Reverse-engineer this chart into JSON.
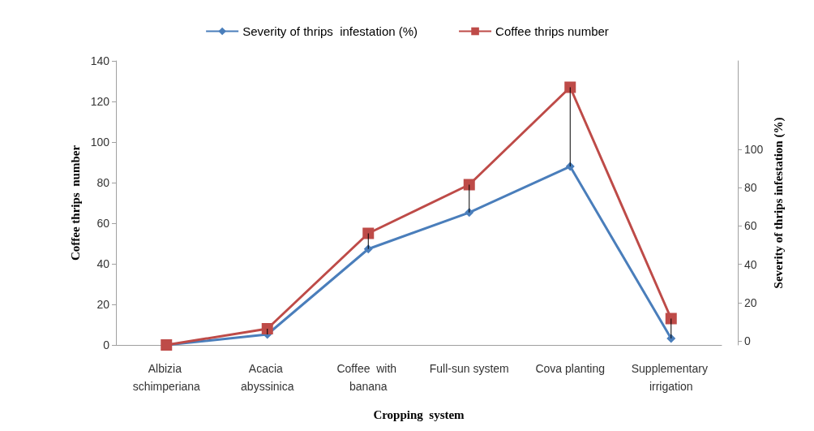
{
  "chart_data": {
    "type": "line",
    "xlabel": "Cropping  system",
    "ylabel": "Coffee thrips  number",
    "y2label": "Severity of thrips infestation (%)",
    "categories": [
      "Albizia schimperiana",
      "Acacia abyssinica",
      "Coffee  with banana",
      "Full-sun system",
      "Cova planting",
      "Supplementary irrigation"
    ],
    "series": [
      {
        "name": "Severity of thrips  infestation (%)",
        "color": "#4a7ebb",
        "marker": "diamond",
        "axis": "y2",
        "values": [
          -2,
          3.5,
          48,
          67,
          91,
          1.4
        ]
      },
      {
        "name": "Coffee thrips number",
        "color": "#be4b48",
        "marker": "square",
        "values": [
          0,
          8,
          55,
          79,
          127,
          13
        ]
      }
    ],
    "ylim": [
      0,
      140
    ],
    "yticks": [
      0,
      20,
      40,
      60,
      80,
      100,
      120,
      140
    ],
    "y2lim": [
      -2,
      146
    ],
    "y2ticks": [
      0,
      20,
      40,
      60,
      80,
      100
    ],
    "grid": false,
    "legend": "top"
  }
}
